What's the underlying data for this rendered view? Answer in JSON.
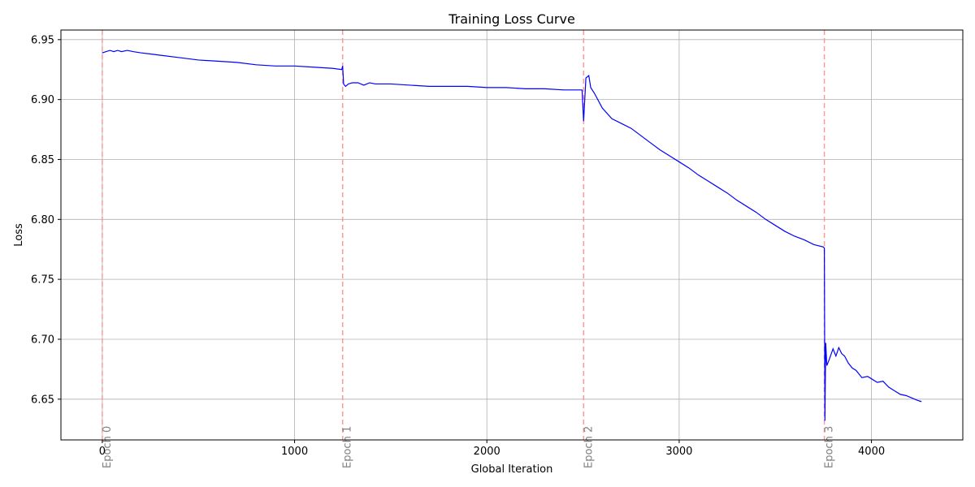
{
  "chart_data": {
    "type": "line",
    "title": "Training Loss Curve",
    "xlabel": "Global Iteration",
    "ylabel": "Loss",
    "xlim": [
      -215,
      4475
    ],
    "ylim": [
      6.616,
      6.958
    ],
    "xticks": [
      0,
      1000,
      2000,
      3000,
      4000
    ],
    "yticks": [
      6.65,
      6.7,
      6.75,
      6.8,
      6.85,
      6.9,
      6.95
    ],
    "grid": true,
    "colors": {
      "line": "#0000ff",
      "epoch_line": "#ff9999",
      "epoch_label": "#808080",
      "grid": "#b0b0b0"
    },
    "epoch_markers": [
      {
        "x": 0,
        "label": "Epoch 0"
      },
      {
        "x": 1250,
        "label": "Epoch 1"
      },
      {
        "x": 2503,
        "label": "Epoch 2"
      },
      {
        "x": 3755,
        "label": "Epoch 3"
      }
    ],
    "series": [
      {
        "x": [
          0,
          20,
          40,
          60,
          80,
          100,
          130,
          160,
          200,
          250,
          300,
          400,
          500,
          600,
          700,
          800,
          900,
          1000,
          1100,
          1200,
          1245,
          1250,
          1255,
          1265,
          1280,
          1300,
          1330,
          1360,
          1390,
          1420,
          1460,
          1500,
          1600,
          1700,
          1800,
          1900,
          2000,
          2100,
          2200,
          2300,
          2400,
          2495,
          2503,
          2515,
          2530,
          2540,
          2560,
          2600,
          2650,
          2700,
          2750,
          2800,
          2850,
          2900,
          2950,
          3000,
          3050,
          3100,
          3150,
          3200,
          3250,
          3300,
          3350,
          3400,
          3450,
          3500,
          3550,
          3600,
          3650,
          3700,
          3750,
          3755,
          3758,
          3762,
          3768,
          3780,
          3800,
          3815,
          3830,
          3845,
          3860,
          3880,
          3900,
          3920,
          3950,
          3980,
          4000,
          4030,
          4060,
          4090,
          4120,
          4150,
          4180,
          4210,
          4240,
          4260
        ],
        "values": [
          6.939,
          6.94,
          6.941,
          6.94,
          6.941,
          6.94,
          6.941,
          6.94,
          6.939,
          6.938,
          6.937,
          6.935,
          6.933,
          6.932,
          6.931,
          6.929,
          6.928,
          6.928,
          6.927,
          6.926,
          6.925,
          6.928,
          6.913,
          6.911,
          6.913,
          6.914,
          6.914,
          6.912,
          6.914,
          6.913,
          6.913,
          6.913,
          6.912,
          6.911,
          6.911,
          6.911,
          6.91,
          6.91,
          6.909,
          6.909,
          6.908,
          6.908,
          6.882,
          6.918,
          6.92,
          6.91,
          6.905,
          6.893,
          6.884,
          6.88,
          6.876,
          6.87,
          6.864,
          6.858,
          6.853,
          6.848,
          6.843,
          6.837,
          6.832,
          6.827,
          6.822,
          6.816,
          6.811,
          6.806,
          6.8,
          6.795,
          6.79,
          6.786,
          6.783,
          6.779,
          6.777,
          6.776,
          6.632,
          6.697,
          6.678,
          6.683,
          6.692,
          6.686,
          6.693,
          6.688,
          6.686,
          6.68,
          6.676,
          6.674,
          6.668,
          6.669,
          6.667,
          6.664,
          6.665,
          6.66,
          6.657,
          6.654,
          6.653,
          6.651,
          6.649,
          6.648
        ]
      }
    ]
  }
}
